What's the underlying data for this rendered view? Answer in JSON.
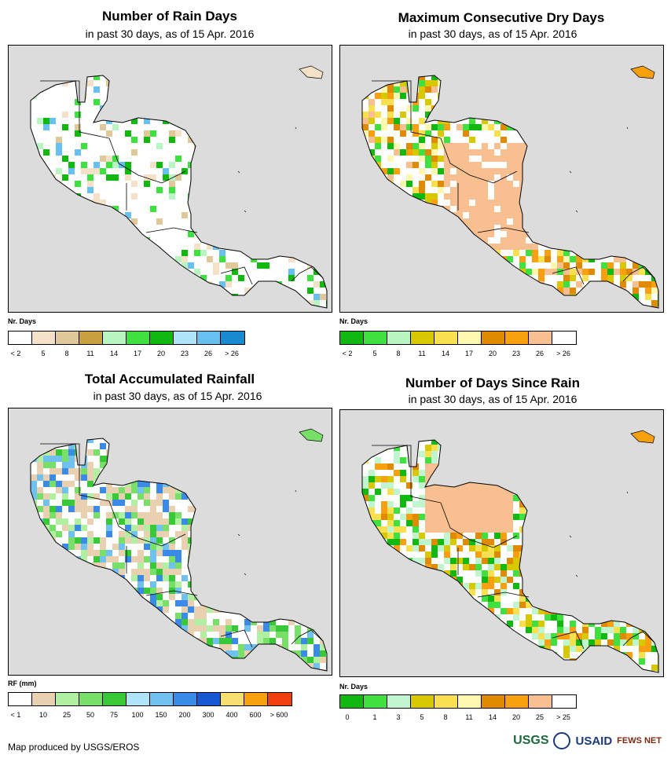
{
  "panels": {
    "rain_days": {
      "title": "Number of Rain Days",
      "subtitle": "in past 30 days, as of 15 Apr. 2016",
      "legend_label": "Nr. Days",
      "ticks": [
        "< 2",
        "5",
        "8",
        "11",
        "14",
        "17",
        "20",
        "23",
        "26",
        "> 26"
      ],
      "colors": [
        "#ffffff",
        "#f5e0c8",
        "#e0c89a",
        "#c8a040",
        "#b8f5c0",
        "#40e040",
        "#10b810",
        "#b0e4f8",
        "#68c0f0",
        "#1a8ad0"
      ]
    },
    "dry_days": {
      "title": "Maximum Consecutive Dry Days",
      "subtitle": "in past 30 days, as of 15 Apr. 2016",
      "legend_label": "Nr. Days",
      "ticks": [
        "< 2",
        "5",
        "8",
        "11",
        "14",
        "17",
        "20",
        "23",
        "26",
        "> 26"
      ],
      "colors": [
        "#10b810",
        "#40e040",
        "#b8f5c0",
        "#d8c800",
        "#f8e050",
        "#fff8b0",
        "#e08a00",
        "#f8a010",
        "#f8c090",
        "#ffffff"
      ]
    },
    "rainfall": {
      "title": "Total Accumulated Rainfall",
      "subtitle": "in past 30 days, as of 15 Apr. 2016",
      "legend_label": "RF (mm)",
      "ticks": [
        "< 1",
        "10",
        "25",
        "50",
        "75",
        "100",
        "150",
        "200",
        "300",
        "400",
        "600",
        "> 600"
      ],
      "colors": [
        "#ffffff",
        "#e8d0b0",
        "#b0f0a0",
        "#78e068",
        "#38c838",
        "#b0e4f8",
        "#70c0f0",
        "#3a8ae8",
        "#1858d0",
        "#f8e070",
        "#f8a010",
        "#f04010"
      ]
    },
    "since_rain": {
      "title": "Number of Days Since Rain",
      "subtitle": "in past 30 days, as of 15 Apr. 2016",
      "legend_label": "Nr. Days",
      "ticks": [
        "0",
        "1",
        "3",
        "5",
        "8",
        "11",
        "14",
        "20",
        "25",
        "> 25"
      ],
      "colors": [
        "#10b810",
        "#40e040",
        "#c0f5d0",
        "#d8c800",
        "#f8e050",
        "#fff8b0",
        "#e08a00",
        "#f8a010",
        "#f8c090",
        "#ffffff"
      ]
    }
  },
  "footer": {
    "credit": "Map produced by USGS/EROS",
    "logo_usgs": "USGS",
    "logo_usaid": "USAID",
    "logo_fews": "FEWS NET"
  }
}
